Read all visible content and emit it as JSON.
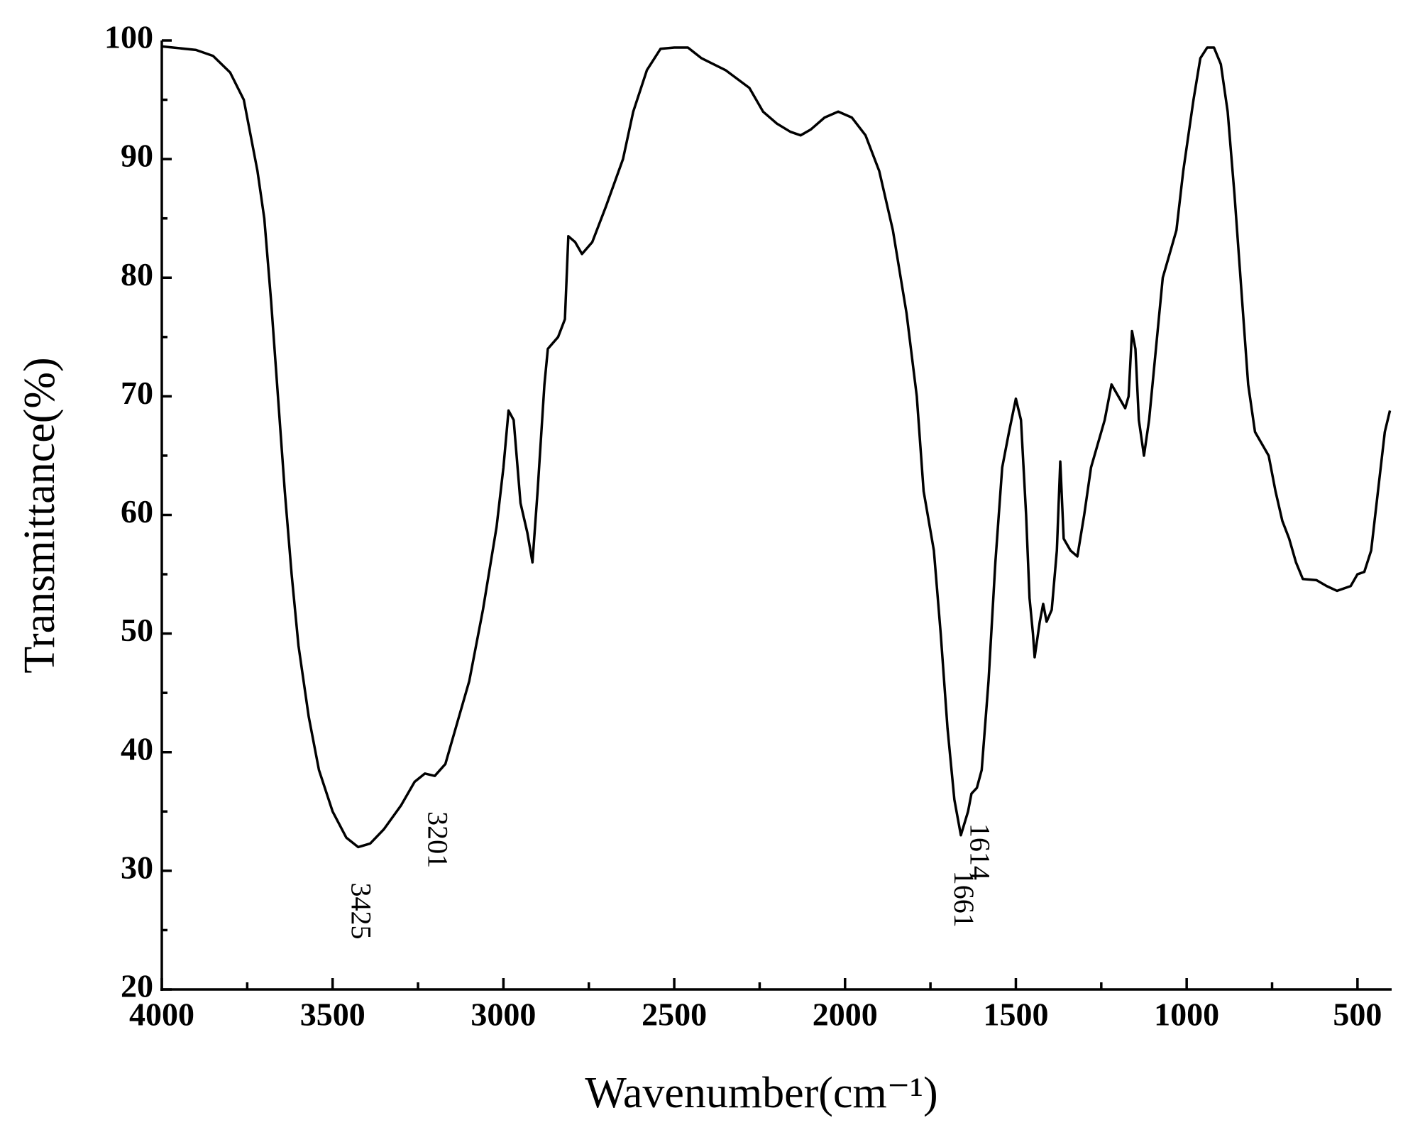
{
  "chart_data": {
    "type": "line",
    "xlabel": "Wavenumber(cm⁻¹)",
    "ylabel": "Transmittance(%)",
    "xlim": [
      4000,
      400
    ],
    "ylim": [
      20,
      100
    ],
    "xticks": [
      4000,
      3500,
      3000,
      2500,
      2000,
      1500,
      1000,
      500
    ],
    "xminor_ticks": [
      3750,
      3250,
      2750,
      2250,
      1750,
      1250,
      750
    ],
    "yticks": [
      20,
      30,
      40,
      50,
      60,
      70,
      80,
      90,
      100
    ],
    "yminor_ticks": [
      25,
      35,
      45,
      55,
      65,
      75,
      85,
      95
    ],
    "color": "#000000",
    "peaks": [
      3425,
      3201,
      1661,
      1614
    ],
    "x": [
      4000,
      3900,
      3850,
      3800,
      3760,
      3740,
      3720,
      3700,
      3680,
      3660,
      3640,
      3620,
      3600,
      3570,
      3540,
      3500,
      3460,
      3425,
      3390,
      3350,
      3300,
      3260,
      3230,
      3201,
      3170,
      3140,
      3100,
      3060,
      3020,
      3000,
      2985,
      2970,
      2950,
      2930,
      2915,
      2900,
      2880,
      2870,
      2840,
      2820,
      2810,
      2790,
      2770,
      2740,
      2700,
      2650,
      2620,
      2580,
      2540,
      2500,
      2460,
      2420,
      2350,
      2280,
      2240,
      2200,
      2160,
      2130,
      2100,
      2060,
      2020,
      1980,
      1940,
      1900,
      1860,
      1820,
      1790,
      1770,
      1740,
      1720,
      1700,
      1680,
      1661,
      1640,
      1630,
      1614,
      1600,
      1580,
      1560,
      1540,
      1520,
      1500,
      1485,
      1470,
      1460,
      1450,
      1445,
      1430,
      1420,
      1410,
      1395,
      1380,
      1370,
      1360,
      1340,
      1320,
      1300,
      1280,
      1240,
      1220,
      1200,
      1180,
      1170,
      1160,
      1150,
      1140,
      1125,
      1110,
      1090,
      1070,
      1050,
      1030,
      1010,
      980,
      960,
      940,
      920,
      900,
      880,
      860,
      840,
      820,
      800,
      780,
      760,
      740,
      720,
      700,
      680,
      660,
      620,
      590,
      560,
      520,
      500,
      480,
      460,
      440,
      420,
      405
    ],
    "values": [
      99.5,
      99.2,
      98.7,
      97.3,
      95,
      92,
      89,
      85,
      78,
      70,
      62,
      55,
      49,
      43,
      38.5,
      35,
      32.8,
      32,
      32.3,
      33.5,
      35.5,
      37.5,
      38.2,
      38,
      39,
      42,
      46,
      52,
      59,
      64,
      68.8,
      68,
      61,
      58.5,
      56,
      62,
      71,
      74,
      75,
      76.5,
      83.5,
      83,
      82,
      83,
      86,
      90,
      94,
      97.5,
      99.3,
      99.4,
      99.4,
      98.5,
      97.5,
      96,
      94,
      93,
      92.3,
      92,
      92.5,
      93.5,
      94,
      93.5,
      92,
      89,
      84,
      77,
      70,
      62,
      57,
      50,
      42,
      36,
      33,
      35,
      36.5,
      37,
      38.5,
      46,
      56,
      64,
      67,
      69.8,
      68,
      60,
      53,
      50,
      48,
      51,
      52.5,
      51,
      52,
      57,
      64.5,
      58,
      57,
      56.5,
      60,
      64,
      68,
      71,
      70,
      69,
      70,
      75.5,
      74,
      68,
      65,
      68,
      74,
      80,
      82,
      84,
      89,
      95,
      98.5,
      99.4,
      99.4,
      98,
      94,
      87,
      79,
      71,
      67,
      66,
      65,
      62,
      59.5,
      58,
      56,
      54.6,
      54.5,
      54,
      53.6,
      54,
      55,
      55.2,
      57,
      62,
      67,
      68.8
    ]
  }
}
